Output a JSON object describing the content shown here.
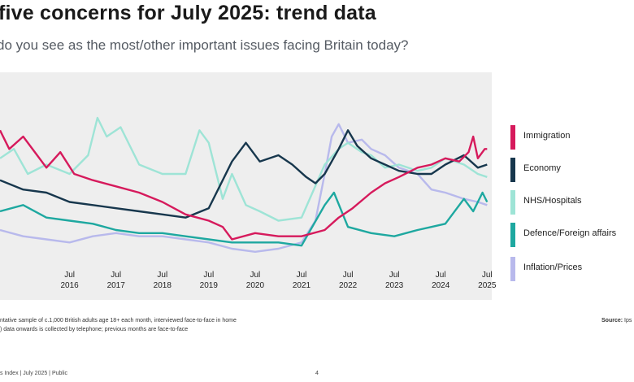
{
  "header": {
    "title": "five concerns for July 2025: trend data",
    "subtitle": "do you see as the most/other important issues facing Britain today?"
  },
  "notes": [
    "ntative sample of c.1,000 British adults age 18+ each month, interviewed face-to-face in home",
    ") data onwards is collected by telephone; previous months are face-to-face"
  ],
  "source": {
    "label": "Source:",
    "value": "Ips"
  },
  "footer": {
    "left": "s Index | July 2025 | Public",
    "page": "4"
  },
  "colors": {
    "immigration": "#d61a5c",
    "economy": "#17374d",
    "nhs": "#9ee4d6",
    "defence": "#1ea8a0",
    "inflation": "#b8b9ec"
  },
  "chart_data": {
    "type": "line",
    "title": "",
    "xlabel": "",
    "ylabel": "",
    "x_range": [
      2015.0,
      2025.6
    ],
    "y_range": [
      0,
      60
    ],
    "grid": false,
    "legend_position": "right",
    "x_ticks": [
      {
        "month": "Jul",
        "year": "2016",
        "x": 2016.5
      },
      {
        "month": "Jul",
        "year": "2017",
        "x": 2017.5
      },
      {
        "month": "Jul",
        "year": "2018",
        "x": 2018.5
      },
      {
        "month": "Jul",
        "year": "2019",
        "x": 2019.5
      },
      {
        "month": "Jul",
        "year": "2020",
        "x": 2020.5
      },
      {
        "month": "Jul",
        "year": "2021",
        "x": 2021.5
      },
      {
        "month": "Jul",
        "year": "2022",
        "x": 2022.5
      },
      {
        "month": "Jul",
        "year": "2023",
        "x": 2023.5
      },
      {
        "month": "Jul",
        "year": "2024",
        "x": 2024.5
      },
      {
        "month": "Jul",
        "year": "2025",
        "x": 2025.5
      }
    ],
    "series": [
      {
        "name": "Inflation/Prices",
        "color_key": "inflation",
        "points": [
          [
            2015.0,
            12
          ],
          [
            2015.5,
            10
          ],
          [
            2016.0,
            9
          ],
          [
            2016.5,
            8
          ],
          [
            2017.0,
            10
          ],
          [
            2017.5,
            11
          ],
          [
            2018.0,
            10
          ],
          [
            2018.5,
            10
          ],
          [
            2019.0,
            9
          ],
          [
            2019.5,
            8
          ],
          [
            2020.0,
            6
          ],
          [
            2020.5,
            5
          ],
          [
            2021.0,
            6
          ],
          [
            2021.5,
            8
          ],
          [
            2021.8,
            15
          ],
          [
            2022.0,
            30
          ],
          [
            2022.15,
            42
          ],
          [
            2022.3,
            46
          ],
          [
            2022.5,
            40
          ],
          [
            2022.8,
            41
          ],
          [
            2023.0,
            38
          ],
          [
            2023.3,
            36
          ],
          [
            2023.6,
            32
          ],
          [
            2024.0,
            30
          ],
          [
            2024.3,
            25
          ],
          [
            2024.6,
            24
          ],
          [
            2025.0,
            22
          ],
          [
            2025.3,
            21
          ],
          [
            2025.5,
            20
          ]
        ]
      },
      {
        "name": "NHS/Hospitals",
        "color_key": "nhs",
        "points": [
          [
            2015.0,
            35
          ],
          [
            2015.3,
            38
          ],
          [
            2015.6,
            30
          ],
          [
            2016.0,
            33
          ],
          [
            2016.5,
            30
          ],
          [
            2016.9,
            36
          ],
          [
            2017.1,
            48
          ],
          [
            2017.3,
            42
          ],
          [
            2017.6,
            45
          ],
          [
            2018.0,
            33
          ],
          [
            2018.5,
            30
          ],
          [
            2019.0,
            30
          ],
          [
            2019.3,
            44
          ],
          [
            2019.5,
            40
          ],
          [
            2019.8,
            22
          ],
          [
            2020.0,
            30
          ],
          [
            2020.3,
            20
          ],
          [
            2020.6,
            18
          ],
          [
            2021.0,
            15
          ],
          [
            2021.5,
            16
          ],
          [
            2022.0,
            33
          ],
          [
            2022.3,
            38
          ],
          [
            2022.5,
            40
          ],
          [
            2022.8,
            37
          ],
          [
            2023.0,
            36
          ],
          [
            2023.3,
            32
          ],
          [
            2023.6,
            33
          ],
          [
            2024.0,
            31
          ],
          [
            2024.3,
            32
          ],
          [
            2024.6,
            35
          ],
          [
            2025.0,
            33
          ],
          [
            2025.3,
            30
          ],
          [
            2025.5,
            29
          ]
        ]
      },
      {
        "name": "Defence/Foreign affairs",
        "color_key": "defence",
        "points": [
          [
            2015.0,
            18
          ],
          [
            2015.5,
            20
          ],
          [
            2016.0,
            16
          ],
          [
            2016.5,
            15
          ],
          [
            2017.0,
            14
          ],
          [
            2017.5,
            12
          ],
          [
            2018.0,
            11
          ],
          [
            2018.5,
            11
          ],
          [
            2019.0,
            10
          ],
          [
            2019.5,
            9
          ],
          [
            2020.0,
            8
          ],
          [
            2020.5,
            8
          ],
          [
            2021.0,
            8
          ],
          [
            2021.5,
            7
          ],
          [
            2022.0,
            20
          ],
          [
            2022.2,
            24
          ],
          [
            2022.5,
            13
          ],
          [
            2023.0,
            11
          ],
          [
            2023.5,
            10
          ],
          [
            2024.0,
            12
          ],
          [
            2024.3,
            13
          ],
          [
            2024.6,
            14
          ],
          [
            2025.0,
            22
          ],
          [
            2025.2,
            18
          ],
          [
            2025.4,
            24
          ],
          [
            2025.5,
            21
          ]
        ]
      },
      {
        "name": "Economy",
        "color_key": "economy",
        "points": [
          [
            2015.0,
            28
          ],
          [
            2015.5,
            25
          ],
          [
            2016.0,
            24
          ],
          [
            2016.5,
            21
          ],
          [
            2017.0,
            20
          ],
          [
            2017.5,
            19
          ],
          [
            2018.0,
            18
          ],
          [
            2018.5,
            17
          ],
          [
            2019.0,
            16
          ],
          [
            2019.5,
            19
          ],
          [
            2019.8,
            28
          ],
          [
            2020.0,
            34
          ],
          [
            2020.3,
            40
          ],
          [
            2020.6,
            34
          ],
          [
            2021.0,
            36
          ],
          [
            2021.3,
            33
          ],
          [
            2021.6,
            29
          ],
          [
            2021.8,
            27
          ],
          [
            2022.0,
            30
          ],
          [
            2022.3,
            38
          ],
          [
            2022.5,
            44
          ],
          [
            2022.7,
            39
          ],
          [
            2023.0,
            35
          ],
          [
            2023.3,
            33
          ],
          [
            2023.6,
            31
          ],
          [
            2024.0,
            30
          ],
          [
            2024.3,
            30
          ],
          [
            2024.6,
            33
          ],
          [
            2025.0,
            36
          ],
          [
            2025.3,
            32
          ],
          [
            2025.5,
            33
          ]
        ]
      },
      {
        "name": "Immigration",
        "color_key": "immigration",
        "points": [
          [
            2015.0,
            44
          ],
          [
            2015.2,
            38
          ],
          [
            2015.5,
            42
          ],
          [
            2015.8,
            36
          ],
          [
            2016.0,
            32
          ],
          [
            2016.3,
            37
          ],
          [
            2016.6,
            30
          ],
          [
            2017.0,
            28
          ],
          [
            2017.5,
            26
          ],
          [
            2018.0,
            24
          ],
          [
            2018.5,
            21
          ],
          [
            2019.0,
            17
          ],
          [
            2019.5,
            15
          ],
          [
            2019.8,
            13
          ],
          [
            2020.0,
            9
          ],
          [
            2020.5,
            11
          ],
          [
            2021.0,
            10
          ],
          [
            2021.5,
            10
          ],
          [
            2022.0,
            12
          ],
          [
            2022.3,
            16
          ],
          [
            2022.6,
            19
          ],
          [
            2023.0,
            24
          ],
          [
            2023.3,
            27
          ],
          [
            2023.6,
            29
          ],
          [
            2024.0,
            32
          ],
          [
            2024.3,
            33
          ],
          [
            2024.6,
            35
          ],
          [
            2024.9,
            34
          ],
          [
            2025.1,
            37
          ],
          [
            2025.2,
            42
          ],
          [
            2025.3,
            35
          ],
          [
            2025.45,
            38
          ],
          [
            2025.5,
            38
          ]
        ]
      }
    ]
  }
}
